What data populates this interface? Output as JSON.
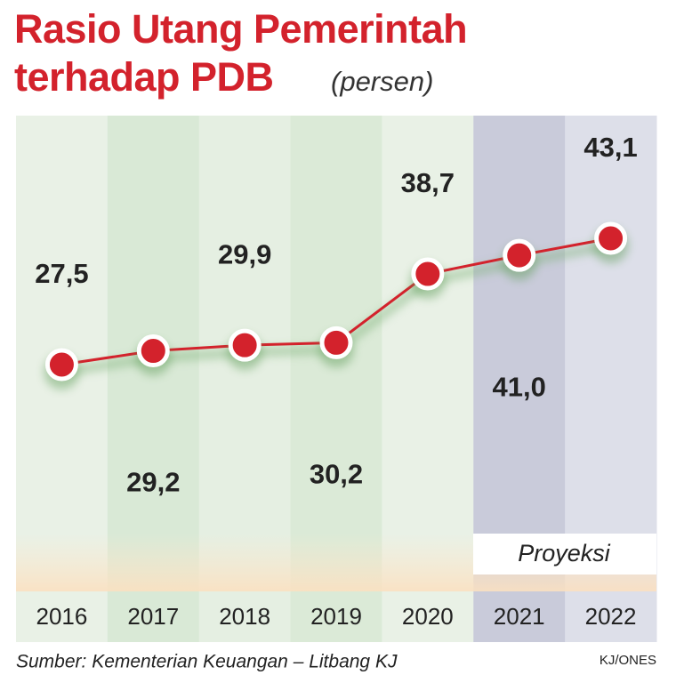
{
  "chart_data": {
    "type": "line",
    "title": "Rasio Utang Pemerintah terhadap PDB",
    "subtitle": "(persen)",
    "categories": [
      "2016",
      "2017",
      "2018",
      "2019",
      "2020",
      "2021",
      "2022"
    ],
    "series": [
      {
        "name": "Rasio utang",
        "color": "#d3222c",
        "values": [
          27.5,
          29.2,
          29.9,
          30.2,
          38.7,
          41.0,
          43.1
        ],
        "value_labels": [
          "27,5",
          "29,2",
          "29,9",
          "30,2",
          "38,7",
          "41,0",
          "43,1"
        ]
      }
    ],
    "column_colors": [
      "#e9f1e6",
      "#d9e9d6",
      "#e5efe2",
      "#dbead7",
      "#e9f1e6",
      "#c9cbda",
      "#dddfe9"
    ],
    "annotation": "Proyeksi",
    "source": "Sumber: Kementerian Keuangan – Litbang KJ",
    "credit": "KJ/ONES"
  }
}
